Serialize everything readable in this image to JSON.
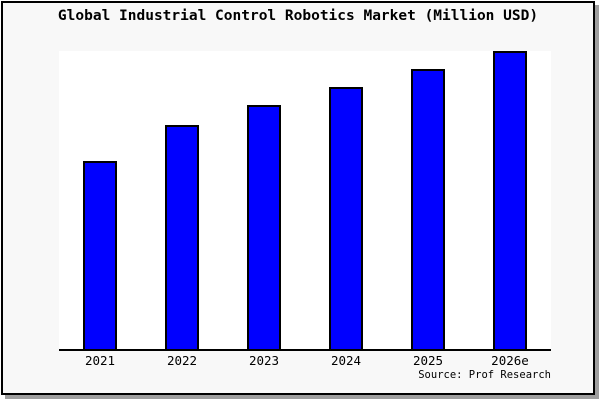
{
  "colors": {
    "bar_fill": "#0000ff",
    "bar_border": "#000000",
    "plot_background": "#ffffff",
    "frame_background": "#f8f8f8",
    "frame_border": "#000000",
    "frame_shadow": "#9e9e9e",
    "axis_line": "#000000",
    "text_color": "#000000"
  },
  "chart_data": {
    "type": "bar",
    "title": "Global Industrial Control Robotics Market (Million USD)",
    "categories": [
      "2021",
      "2022",
      "2023",
      "2024",
      "2025",
      "2026e"
    ],
    "values": [
      63,
      75,
      82,
      88,
      94,
      100
    ],
    "value_scale": "relative units (no y-axis scale or gridlines shown; 2026e bar = 100)",
    "xlabel": "",
    "ylabel": "",
    "ylim": [
      0,
      100
    ],
    "grid": false,
    "legend": false,
    "y_axis_visible": false,
    "source_label": "Source: Prof Research"
  }
}
